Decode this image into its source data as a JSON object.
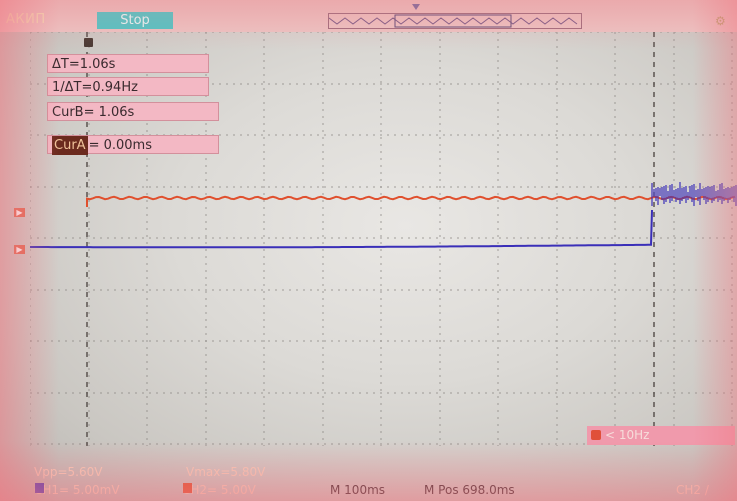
{
  "header": {
    "brand": "АКИП",
    "run_state": "Stop"
  },
  "readouts": {
    "delta_t": "ΔT=1.06s",
    "inv_delta_t": "1/ΔT=0.94Hz",
    "cur_b": "CurB= 1.06s",
    "cur_a_label": "CurA",
    "cur_a_value": "= 0.00ms"
  },
  "trigger": {
    "freq": "< 10Hz"
  },
  "measurements": {
    "vpp": "Vpp=5.60V",
    "vmax": "Vmax=5.80V"
  },
  "status": {
    "ch1_scale": "CH1= 5.00mV",
    "ch2_scale": "CH2= 5.00V",
    "timebase": "M 100ms",
    "mpos": "M Pos 698.0ms",
    "trig_source": "CH2 /"
  },
  "colors": {
    "ch1": "#3a2fb8",
    "ch2": "#e0502e",
    "accent": "#4fc5c5"
  },
  "icons": {
    "top_right": "channel-settings-icon",
    "cursor_marker": "cursor-marker-icon"
  }
}
